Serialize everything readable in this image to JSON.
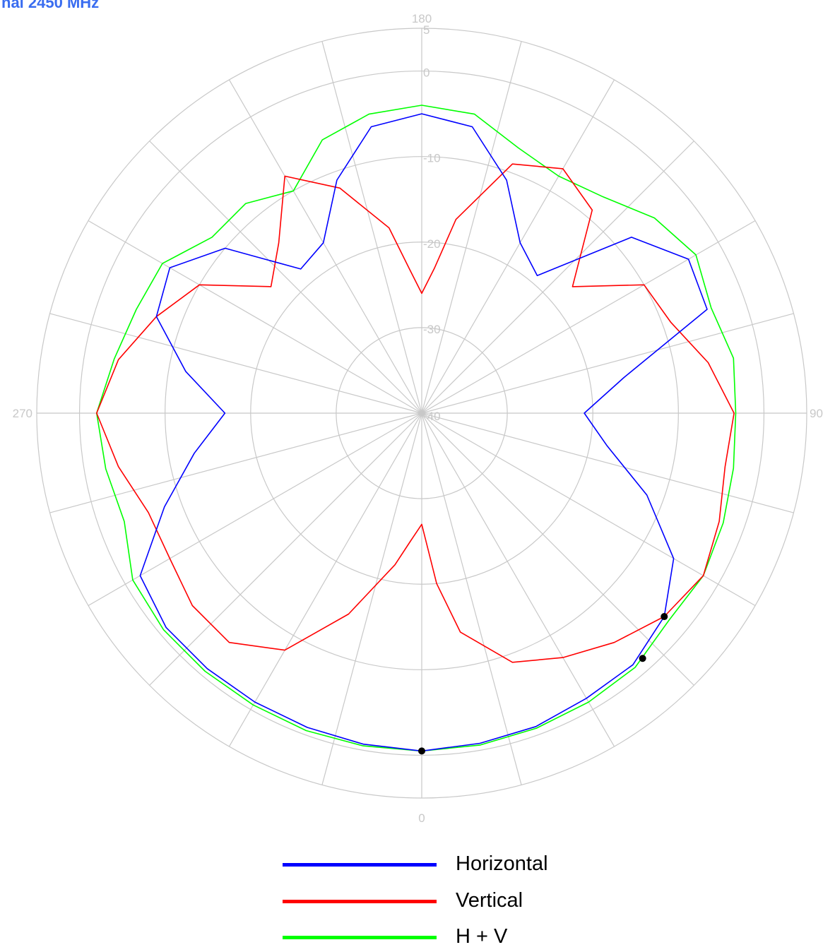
{
  "chart_data": {
    "type": "polar-line",
    "title": "nal 2450 MHz",
    "title_color": "#3a6df0",
    "angle_labels": [
      {
        "angle": 0,
        "text": "0"
      },
      {
        "angle": 90,
        "text": "90"
      },
      {
        "angle": 180,
        "text": "180"
      },
      {
        "angle": 270,
        "text": "270"
      }
    ],
    "angle_grid_step_deg": 15,
    "radial_range": [
      -40,
      5
    ],
    "radial_ticks": [
      {
        "value": 5,
        "text": "5"
      },
      {
        "value": 0,
        "text": "0"
      },
      {
        "value": -10,
        "text": "-10"
      },
      {
        "value": -20,
        "text": "-20"
      },
      {
        "value": -30,
        "text": "-30"
      },
      {
        "value": -40,
        "text": "-40"
      }
    ],
    "grid": true,
    "grid_color": "#c8c8c8",
    "legend_position": "bottom",
    "series": [
      {
        "name": "Horizontal",
        "color": "#0000ff",
        "angles": [
          0,
          10,
          20,
          30,
          40,
          50,
          60,
          70,
          80,
          90,
          100,
          110,
          120,
          130,
          140,
          150,
          160,
          170,
          180,
          190,
          200,
          210,
          220,
          230,
          240,
          250,
          260,
          270,
          280,
          290,
          300,
          310,
          320,
          330,
          340,
          350
        ],
        "values": [
          -0.5,
          -0.8,
          -1.0,
          -1.5,
          -1.6,
          -3.0,
          -6.0,
          -12.0,
          -18.0,
          -21.0,
          -16.0,
          -4.5,
          -4.0,
          -8.0,
          -19.0,
          -17.0,
          -11.0,
          -6.0,
          -5.0,
          -6.0,
          -11.0,
          -17.0,
          -18.0,
          -10.0,
          -6.0,
          -7.0,
          -12.0,
          -17.0,
          -13.0,
          -8.0,
          -2.0,
          -1.0,
          -1.0,
          -1.0,
          -0.9,
          -0.7
        ]
      },
      {
        "name": "Vertical",
        "color": "#ff0000",
        "angles": [
          0,
          5,
          10,
          20,
          30,
          40,
          50,
          60,
          70,
          80,
          90,
          100,
          110,
          120,
          130,
          140,
          150,
          160,
          170,
          175,
          180,
          185,
          190,
          200,
          210,
          220,
          230,
          240,
          250,
          260,
          270,
          280,
          290,
          300,
          310,
          320,
          330,
          340,
          350,
          355
        ],
        "values": [
          -27.0,
          -20.0,
          -14.0,
          -9.0,
          -7.0,
          -5.0,
          -3.0,
          -2.0,
          -3.0,
          -4.0,
          -3.5,
          -6.0,
          -9.0,
          -10.0,
          -17.0,
          -9.0,
          -7.0,
          -9.0,
          -17.0,
          -23.0,
          -26.0,
          -23.0,
          -18.0,
          -12.0,
          -8.0,
          -14.0,
          -17.0,
          -10.0,
          -7.0,
          -4.0,
          -2.0,
          -4.0,
          -6.0,
          -6.0,
          -5.0,
          -5.0,
          -8.0,
          -15.0,
          -22.0,
          -25.0
        ]
      },
      {
        "name": "H + V",
        "color": "#00ff00",
        "angles": [
          0,
          10,
          20,
          30,
          40,
          50,
          60,
          70,
          80,
          90,
          100,
          110,
          120,
          130,
          140,
          150,
          160,
          170,
          180,
          190,
          200,
          210,
          220,
          230,
          240,
          250,
          260,
          270,
          280,
          290,
          300,
          310,
          320,
          330,
          340,
          350
        ],
        "values": [
          -0.5,
          -0.6,
          -0.8,
          -1.0,
          -1.2,
          -2.3,
          -2.0,
          -2.5,
          -3.0,
          -3.3,
          -3.0,
          -4.0,
          -3.0,
          -4.5,
          -7.0,
          -8.0,
          -7.0,
          -4.5,
          -4.0,
          -4.5,
          -6.0,
          -10.0,
          -8.0,
          -8.0,
          -5.0,
          -4.5,
          -3.5,
          -2.0,
          -2.5,
          -3.0,
          -1.0,
          -0.6,
          -0.6,
          -0.6,
          -0.5,
          -0.5
        ]
      }
    ],
    "markers": [
      {
        "series": "H + V",
        "angle": 0
      },
      {
        "series": "H + V",
        "angle": 42
      },
      {
        "series": "Vertical",
        "angle": 50
      }
    ]
  }
}
